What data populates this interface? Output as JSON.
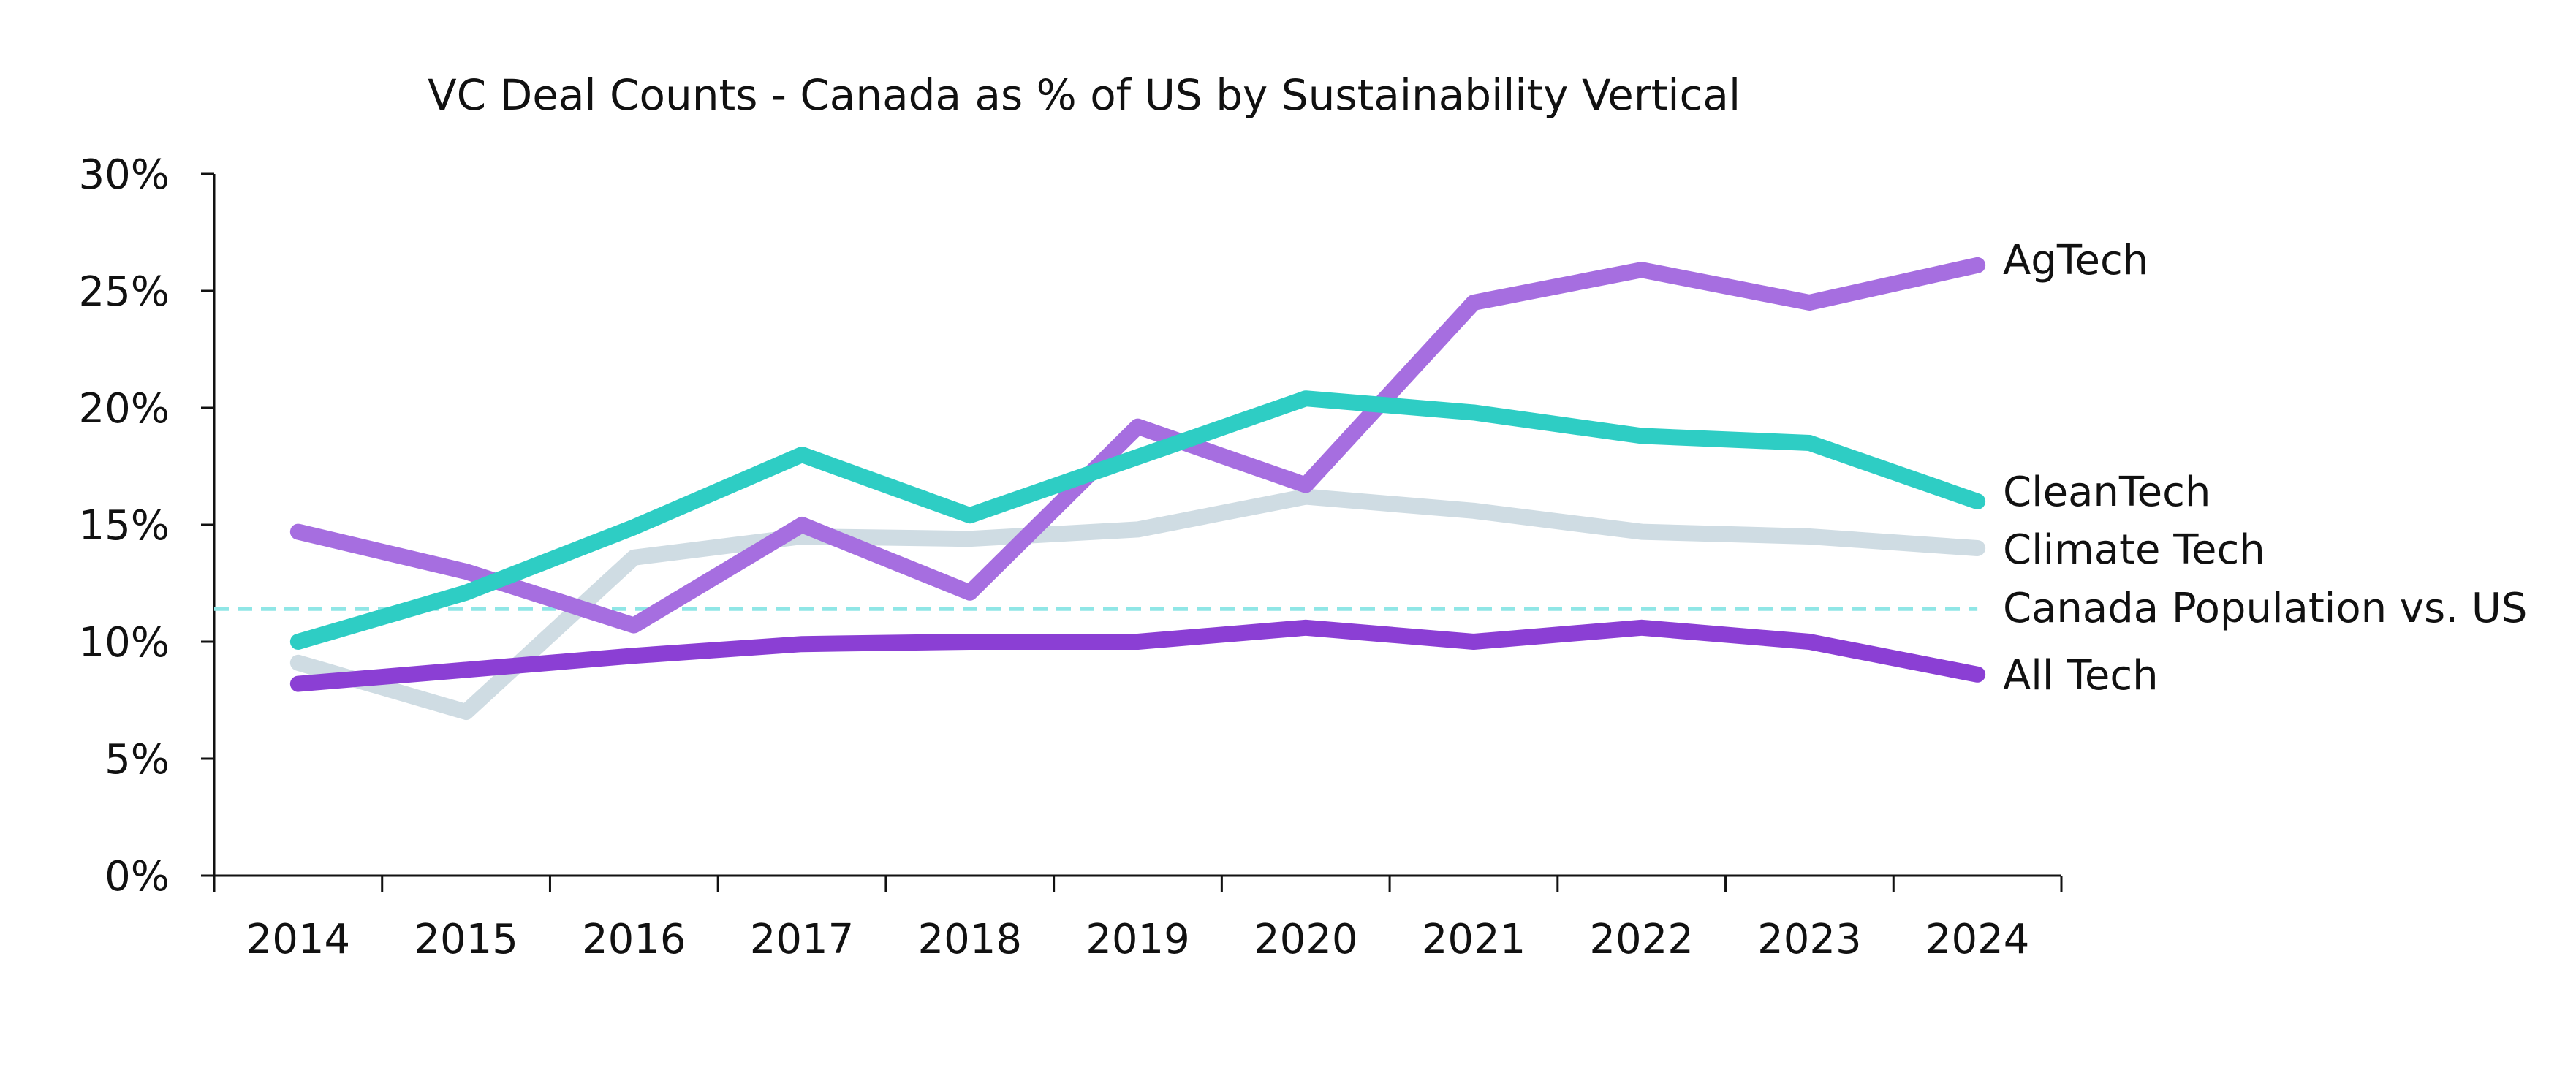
{
  "chart_data": {
    "type": "line",
    "title": "VC Deal Counts - Canada as % of US by Sustainability Vertical",
    "xlabel": "",
    "ylabel": "",
    "categories": [
      "2014",
      "2015",
      "2016",
      "2017",
      "2018",
      "2019",
      "2020",
      "2021",
      "2022",
      "2023",
      "2024"
    ],
    "y_ticks": [
      "0%",
      "5%",
      "10%",
      "15%",
      "20%",
      "25%",
      "30%"
    ],
    "ylim": [
      0,
      30
    ],
    "grid": false,
    "legend": "direct labels at right end of lines",
    "series": [
      {
        "name": "AgTech",
        "color": "#a66ee0",
        "values": [
          14.7,
          13.0,
          10.7,
          15.0,
          12.1,
          19.2,
          16.7,
          24.5,
          25.9,
          24.5,
          26.1
        ]
      },
      {
        "name": "CleanTech",
        "color": "#2ecdc4",
        "values": [
          10.0,
          12.1,
          14.9,
          18.0,
          15.4,
          17.9,
          20.4,
          19.8,
          18.8,
          18.5,
          16.0
        ]
      },
      {
        "name": "Climate Tech",
        "color": "#cfdce3",
        "values": [
          9.1,
          7.0,
          13.6,
          14.5,
          14.4,
          14.8,
          16.2,
          15.6,
          14.7,
          14.5,
          14.0
        ]
      },
      {
        "name": "All Tech",
        "color": "#8b3fd4",
        "values": [
          8.2,
          8.8,
          9.4,
          9.9,
          10.0,
          10.0,
          10.6,
          10.0,
          10.6,
          10.0,
          8.6
        ]
      }
    ],
    "reference_line": {
      "name": "Canada Population vs. US",
      "value": 11.4,
      "color": "#8fe6e6",
      "style": "dashed"
    },
    "series_labels_order": [
      "AgTech",
      "CleanTech",
      "Climate Tech",
      "Canada Population vs. US",
      "All Tech"
    ]
  }
}
